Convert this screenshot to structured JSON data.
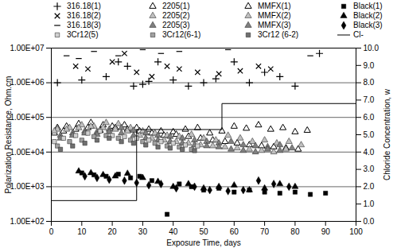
{
  "chart_data": {
    "type": "scatter",
    "x_label": "Exposure Time, days",
    "y_label": "Polarization Resistance, Ohm.cm",
    "y2_label": "Chloride Concentration, w",
    "xlim": [
      0,
      100
    ],
    "xticks": [
      0,
      10,
      20,
      30,
      40,
      50,
      60,
      70,
      80,
      90,
      100
    ],
    "ylim": [
      100,
      10000000
    ],
    "yticks": [
      {
        "value": 100,
        "label": "1.00E+02"
      },
      {
        "value": 1000,
        "label": "1.00E+03"
      },
      {
        "value": 10000,
        "label": "1.00E+04"
      },
      {
        "value": 100000,
        "label": "1.00E+05"
      },
      {
        "value": 1000000,
        "label": "1.00E+06"
      },
      {
        "value": 10000000,
        "label": "1.00E+07"
      }
    ],
    "y2lim": [
      0,
      10
    ],
    "y2ticks": [
      {
        "value": 0,
        "label": "0.0"
      },
      {
        "value": 1,
        "label": "1.0"
      },
      {
        "value": 2,
        "label": "2.0"
      },
      {
        "value": 3,
        "label": "3.0"
      },
      {
        "value": 4,
        "label": "4.0"
      },
      {
        "value": 5,
        "label": "5.0"
      },
      {
        "value": 6,
        "label": "6.0"
      },
      {
        "value": 7,
        "label": "7.0"
      },
      {
        "value": 8,
        "label": "8.0"
      },
      {
        "value": 9,
        "label": "9.0"
      },
      {
        "value": 10,
        "label": "10.0"
      }
    ],
    "log": "y",
    "grid": true,
    "legend": "top",
    "series": [
      {
        "name": "316.18(1)",
        "color": "#000000",
        "marker": "plus",
        "x": [
          2,
          10,
          18,
          22,
          25,
          27,
          30,
          32,
          35,
          40,
          45,
          50,
          54,
          60,
          65,
          70,
          75,
          80,
          88
        ],
        "values": [
          1000000,
          1200000,
          1500000,
          4000000,
          3000000,
          800000,
          900000,
          1100000,
          4000000,
          1200000,
          800000,
          1000000,
          1300000,
          4000000,
          1000000,
          2000000,
          1500000,
          800000,
          7000000
        ]
      },
      {
        "name": "2205(1)",
        "color": "#000000",
        "marker": "triangle-open",
        "x": [
          1,
          4,
          8,
          12,
          16,
          20,
          24,
          28,
          32,
          36,
          40,
          44,
          48,
          52,
          56,
          60,
          64,
          68,
          72,
          76,
          80,
          84
        ],
        "values": [
          35000,
          40000,
          45000,
          50000,
          42000,
          55000,
          60000,
          50000,
          45000,
          40000,
          38000,
          45000,
          50000,
          35000,
          40000,
          55000,
          48000,
          60000,
          45000,
          50000,
          38000,
          42000
        ]
      },
      {
        "name": "MMFX(1)",
        "color": "#000000",
        "marker": "triangle-open",
        "x": [
          2,
          5,
          9,
          13,
          17,
          21,
          25,
          29,
          33,
          37,
          41,
          45,
          49,
          53,
          57,
          61,
          65,
          69,
          73,
          77,
          81
        ],
        "values": [
          50000,
          55000,
          65000,
          70000,
          60000,
          50000,
          45000,
          40000,
          35000,
          30000,
          32000,
          28000,
          25000,
          22000,
          20000,
          18000,
          16000,
          15000,
          14000,
          13000,
          12000
        ]
      },
      {
        "name": "Black(1)",
        "color": "#000000",
        "marker": "square",
        "x": [
          10,
          14,
          18,
          22,
          26,
          29,
          33,
          38,
          42,
          46,
          50,
          55,
          60,
          65,
          70,
          75,
          80,
          85,
          90
        ],
        "values": [
          2500,
          2200,
          2000,
          2300,
          1800,
          2000,
          1500,
          160,
          1200,
          1000,
          800,
          900,
          700,
          800,
          700,
          650,
          700,
          600,
          650
        ]
      },
      {
        "name": "316.18(2)",
        "color": "#000000",
        "marker": "times",
        "x": [
          8,
          12,
          20,
          24,
          28,
          33,
          38,
          42,
          48,
          55,
          62,
          68,
          72
        ],
        "values": [
          3000000,
          2500000,
          4000000,
          7000000,
          2000000,
          1500000,
          3000000,
          2500000,
          2000000,
          1800000,
          2200000,
          3000000,
          2500000
        ]
      },
      {
        "name": "2205(2)",
        "color": "#c0c0c0",
        "marker": "triangle",
        "x": [
          2,
          6,
          10,
          14,
          18,
          22,
          26,
          30,
          34,
          38,
          42,
          46,
          50,
          54,
          58,
          62,
          66,
          70,
          74,
          78,
          82
        ],
        "values": [
          45000,
          50000,
          60000,
          55000,
          70000,
          65000,
          50000,
          40000,
          35000,
          30000,
          28000,
          32000,
          25000,
          22000,
          30000,
          25000,
          20000,
          22000,
          18000,
          20000,
          16000
        ]
      },
      {
        "name": "MMFX(2)",
        "color": "#c0c0c0",
        "marker": "triangle",
        "x": [
          1,
          5,
          9,
          13,
          17,
          21,
          25,
          29,
          33,
          37,
          41,
          45,
          49,
          53,
          57,
          61,
          65,
          69,
          73,
          77
        ],
        "values": [
          40000,
          45000,
          50000,
          55000,
          50000,
          45000,
          40000,
          30000,
          25000,
          22000,
          20000,
          18000,
          16000,
          15000,
          14000,
          13000,
          12000,
          11000,
          10000,
          12000
        ]
      },
      {
        "name": "Black(2)",
        "color": "#000000",
        "marker": "triangle",
        "x": [
          9,
          13,
          17,
          21,
          25,
          30,
          35,
          40,
          45,
          50,
          55,
          60,
          65,
          70,
          75,
          80
        ],
        "values": [
          2800,
          2500,
          2200,
          2000,
          2400,
          1800,
          1400,
          1000,
          1200,
          900,
          1000,
          1100,
          800,
          900,
          1200,
          1000
        ]
      },
      {
        "name": "316.18(3)",
        "color": "#000000",
        "marker": "dash",
        "x": [
          5,
          9,
          14,
          22,
          30,
          36,
          42,
          58,
          85
        ],
        "values": [
          6000000,
          5000000,
          8000000,
          6000000,
          9000000,
          7000000,
          8000000,
          9000000,
          6000000
        ]
      },
      {
        "name": "2205(3)",
        "color": "#808080",
        "marker": "triangle",
        "x": [
          3,
          7,
          11,
          15,
          19,
          23,
          27,
          31,
          35,
          39,
          43,
          47,
          51,
          55,
          59,
          63,
          67,
          71,
          75,
          79
        ],
        "values": [
          30000,
          35000,
          40000,
          38000,
          45000,
          50000,
          42000,
          35000,
          30000,
          28000,
          25000,
          22000,
          20000,
          18000,
          20000,
          16000,
          15000,
          14000,
          16000,
          13000
        ]
      },
      {
        "name": "MMFX(3)",
        "color": "#808080",
        "marker": "triangle",
        "x": [
          3,
          7,
          11,
          15,
          19,
          23,
          27,
          31,
          35,
          39,
          43,
          47,
          51,
          55,
          59,
          63,
          67,
          71,
          75
        ],
        "values": [
          25000,
          30000,
          35000,
          32000,
          38000,
          35000,
          30000,
          25000,
          22000,
          20000,
          18000,
          16000,
          15000,
          14000,
          12000,
          11000,
          10000,
          12000,
          11000
        ]
      },
      {
        "name": "Black(3)",
        "color": "#000000",
        "marker": "diamond",
        "x": [
          11,
          15,
          19,
          24,
          28,
          32,
          36,
          41,
          47,
          52,
          58,
          63,
          68,
          73,
          78
        ],
        "values": [
          2000,
          1800,
          1600,
          1500,
          1300,
          1100,
          1200,
          900,
          1000,
          800,
          750,
          800,
          1500,
          1200,
          1000
        ]
      },
      {
        "name": "3Cr12(5)",
        "color": "#d0d0d0",
        "marker": "square",
        "x": [
          1,
          4,
          8,
          12,
          16,
          20,
          24,
          28,
          32,
          36,
          40,
          44,
          48
        ],
        "values": [
          20000,
          25000,
          30000,
          35000,
          40000,
          30000,
          28000,
          25000,
          22000,
          20000,
          18000,
          16000,
          15000
        ]
      },
      {
        "name": "3Cr12(6-1)",
        "color": "#a0a0a0",
        "marker": "square",
        "x": [
          2,
          6,
          10,
          14,
          18,
          22,
          26,
          30,
          34,
          38,
          42,
          46
        ],
        "values": [
          15000,
          20000,
          22000,
          28000,
          30000,
          25000,
          22000,
          20000,
          18000,
          15000,
          14000,
          12000
        ]
      },
      {
        "name": "3Cr12 (6-2)",
        "color": "#707070",
        "marker": "square",
        "x": [
          3,
          7,
          11,
          15,
          19,
          23,
          27,
          31,
          35,
          39,
          43,
          47
        ],
        "values": [
          12000,
          15000,
          18000,
          22000,
          25000,
          20000,
          18000,
          16000,
          14000,
          13000,
          12000,
          11000
        ]
      },
      {
        "name": "Cl-",
        "color": "#000000",
        "type": "line",
        "axis": "y2",
        "marker": "none",
        "x": [
          0,
          28,
          28,
          56,
          56,
          100
        ],
        "values": [
          1.2,
          1.2,
          5.3,
          5.3,
          6.8,
          6.8
        ]
      }
    ]
  }
}
